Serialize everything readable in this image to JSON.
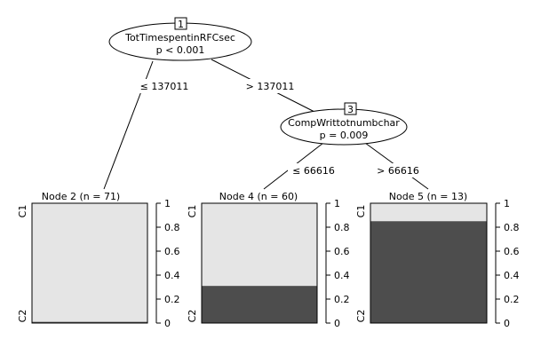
{
  "colors": {
    "c1": "#e5e5e5",
    "c2": "#4d4d4d",
    "line": "#000000"
  },
  "inner_nodes": [
    {
      "id": "1",
      "variable": "TotTimespentinRFCsec",
      "p": "p < 0.001"
    },
    {
      "id": "3",
      "variable": "CompWrittotnumbchar",
      "p": "p = 0.009"
    }
  ],
  "edges": [
    {
      "label": "≤ 137011"
    },
    {
      "label": "> 137011"
    },
    {
      "label": "≤ 66616"
    },
    {
      "label": "> 66616"
    }
  ],
  "terminal_nodes": [
    {
      "label": "Node 2 (n = 71)",
      "p_c1": 0.99,
      "p_c2": 0.01
    },
    {
      "label": "Node 4 (n = 60)",
      "p_c1": 0.69,
      "p_c2": 0.31
    },
    {
      "label": "Node 5 (n = 13)",
      "p_c1": 0.15,
      "p_c2": 0.85
    }
  ],
  "class_labels": {
    "top": "C1",
    "bottom": "C2"
  },
  "axis_ticks": [
    "0",
    "0.2",
    "0.4",
    "0.6",
    "0.8",
    "1"
  ],
  "axis_tick_values": [
    0,
    0.2,
    0.4,
    0.6,
    0.8,
    1
  ]
}
